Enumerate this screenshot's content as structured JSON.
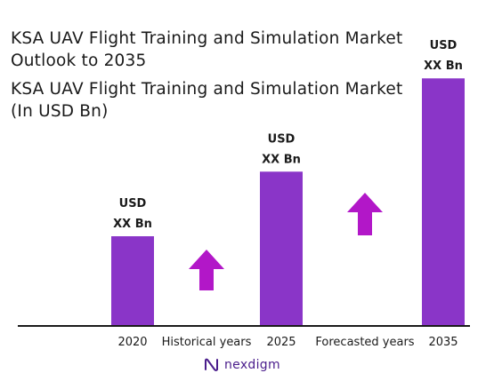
{
  "title_lines": [
    "KSA UAV Flight Training and Simulation Market",
    "Outlook to 2035",
    "KSA UAV Flight Training and Simulation Market",
    "(In USD Bn)"
  ],
  "brand": {
    "name": "nexdigm",
    "icon": "nexdigm-logo-icon"
  },
  "colors": {
    "bar": "#8a35c8",
    "arrow": "#b217c8",
    "axis": "#1a1a1a",
    "brand": "#4a1d8c"
  },
  "chart_data": {
    "type": "bar",
    "categories": [
      "2020",
      "2025",
      "2035"
    ],
    "values": [
      1,
      1.72,
      2.76
    ],
    "data_labels": [
      [
        "USD",
        "XX Bn"
      ],
      [
        "USD",
        "XX Bn"
      ],
      [
        "USD",
        "XX Bn"
      ]
    ],
    "value_scale": "relative (values not printed; shown only as bar heights)",
    "period_labels": [
      "Historical years",
      "Forecasted years"
    ],
    "period_trend": [
      "up-arrow",
      "up-arrow"
    ],
    "grid": false,
    "legend": "none"
  }
}
